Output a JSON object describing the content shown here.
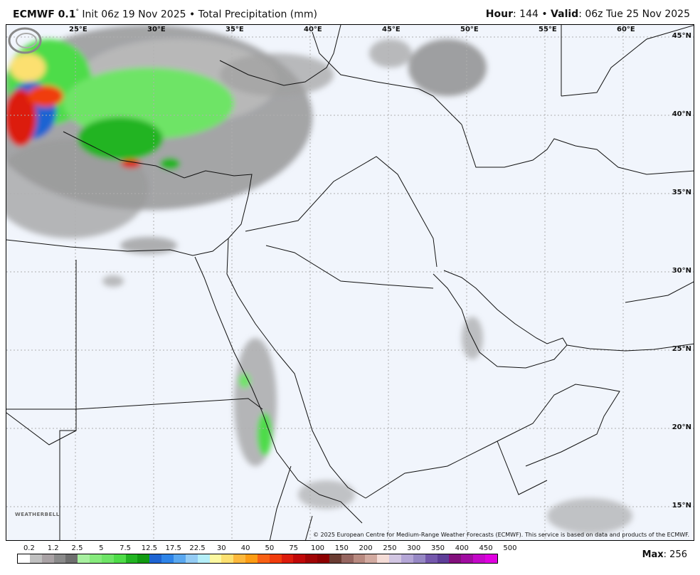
{
  "header": {
    "model": "ECMWF 0.1",
    "degree": "°",
    "init": " Init 06z 19 Nov 2025 • Total Precipitation (mm)",
    "hour_label": "Hour",
    "hour_value": ": 144 • ",
    "valid_label": "Valid",
    "valid_value": ": 06z Tue 25 Nov 2025"
  },
  "map": {
    "lon_labels": [
      "25°E",
      "30°E",
      "35°E",
      "40°E",
      "45°E",
      "50°E",
      "55°E",
      "60°E"
    ],
    "lat_labels": [
      "45°N",
      "40°N",
      "35°N",
      "30°N",
      "25°N",
      "20°N",
      "15°N"
    ],
    "copyright": "© 2025 European Centre for Medium-Range Weather Forecasts (ECMWF). This service is based on data and products of the ECMWF.",
    "logo_text": "WEATHERBELL",
    "background_color": "#f1f5fc"
  },
  "colorbar": {
    "labels": [
      "0.2",
      "1.2",
      "2.5",
      "5",
      "7.5",
      "12.5",
      "17.5",
      "22.5",
      "30",
      "40",
      "50",
      "75",
      "100",
      "150",
      "200",
      "250",
      "300",
      "350",
      "400",
      "450",
      "500"
    ],
    "colors": [
      "#ffffff",
      "#c0c0c0",
      "#a9a2a5",
      "#8a8a8a",
      "#6e6e6e",
      "#a8f0a0",
      "#86ea7c",
      "#6ee466",
      "#4edc48",
      "#22b422",
      "#129a12",
      "#1e64d2",
      "#2e84e8",
      "#5aa8f0",
      "#94ccf4",
      "#b4eef8",
      "#fcf8a0",
      "#fce070",
      "#fcb83c",
      "#fc9c14",
      "#f86014",
      "#f03c0c",
      "#dc1c0c",
      "#c00808",
      "#a00404",
      "#8c0000",
      "#6a3c32",
      "#966660",
      "#b88a80",
      "#d2aaa0",
      "#f4dcd6",
      "#d2c6e2",
      "#b4a6d6",
      "#9688c4",
      "#7458ac",
      "#5e3e98",
      "#82107c",
      "#a00ca0",
      "#c408c8",
      "#e000e0"
    ],
    "max_label": "Max",
    "max_value": ": 256"
  }
}
